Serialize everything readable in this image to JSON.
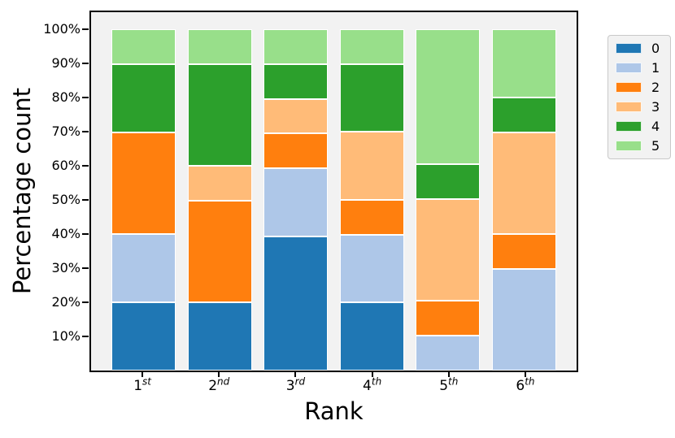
{
  "figure": {
    "background_color": "#ffffff",
    "plot_background_color": "#f2f2f2",
    "spine_color": "#000000"
  },
  "chart_data": {
    "type": "bar",
    "stacked": true,
    "normalized_percent": true,
    "title": "",
    "xlabel": "Rank",
    "ylabel": "Percentage count",
    "ylim": [
      0,
      105
    ],
    "grid": false,
    "bar_edge_color": "#ffffff",
    "legend_position": "outside-upper-right",
    "categories": [
      {
        "base": "1",
        "sup": "st"
      },
      {
        "base": "2",
        "sup": "nd"
      },
      {
        "base": "3",
        "sup": "rd"
      },
      {
        "base": "4",
        "sup": "th"
      },
      {
        "base": "5",
        "sup": "th"
      },
      {
        "base": "6",
        "sup": "th"
      }
    ],
    "yticks": [
      {
        "value": 10,
        "label": "10%"
      },
      {
        "value": 20,
        "label": "20%"
      },
      {
        "value": 30,
        "label": "30%"
      },
      {
        "value": 40,
        "label": "40%"
      },
      {
        "value": 50,
        "label": "50%"
      },
      {
        "value": 60,
        "label": "60%"
      },
      {
        "value": 70,
        "label": "70%"
      },
      {
        "value": 80,
        "label": "80%"
      },
      {
        "value": 90,
        "label": "90%"
      },
      {
        "value": 100,
        "label": "100%"
      }
    ],
    "series": [
      {
        "name": "0",
        "color": "#1f77b4",
        "values": [
          20,
          20,
          40,
          20,
          0,
          0
        ]
      },
      {
        "name": "1",
        "color": "#aec7e8",
        "values": [
          20,
          0,
          20,
          20,
          10,
          30
        ]
      },
      {
        "name": "2",
        "color": "#ff7f0e",
        "values": [
          30,
          30,
          10,
          10,
          10,
          10
        ]
      },
      {
        "name": "3",
        "color": "#ffbb78",
        "values": [
          0,
          10,
          10,
          20,
          30,
          30
        ]
      },
      {
        "name": "4",
        "color": "#2ca02c",
        "values": [
          20,
          30,
          10,
          20,
          10,
          10
        ]
      },
      {
        "name": "5",
        "color": "#98df8a",
        "values": [
          10,
          10,
          10,
          10,
          40,
          20
        ]
      }
    ]
  }
}
